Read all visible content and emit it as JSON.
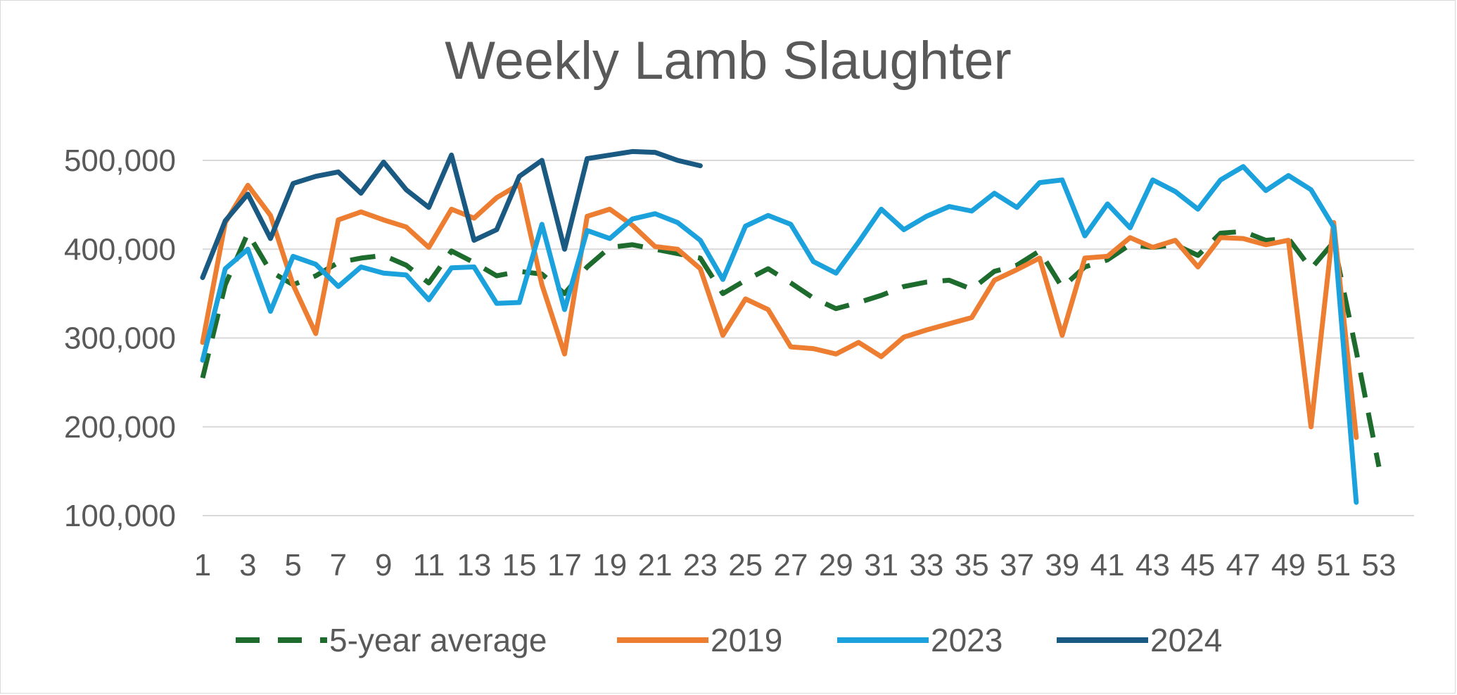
{
  "chart_data": {
    "type": "line",
    "title": "Weekly Lamb Slaughter",
    "xlabel": "",
    "ylabel": "",
    "x": [
      1,
      2,
      3,
      4,
      5,
      6,
      7,
      8,
      9,
      10,
      11,
      12,
      13,
      14,
      15,
      16,
      17,
      18,
      19,
      20,
      21,
      22,
      23,
      24,
      25,
      26,
      27,
      28,
      29,
      30,
      31,
      32,
      33,
      34,
      35,
      36,
      37,
      38,
      39,
      40,
      41,
      42,
      43,
      44,
      45,
      46,
      47,
      48,
      49,
      50,
      51,
      52,
      53
    ],
    "x_tick_labels": [
      "1",
      "3",
      "5",
      "7",
      "9",
      "11",
      "13",
      "15",
      "17",
      "19",
      "21",
      "23",
      "25",
      "27",
      "29",
      "31",
      "33",
      "35",
      "37",
      "39",
      "41",
      "43",
      "45",
      "47",
      "49",
      "51",
      "53"
    ],
    "y_tick_labels": [
      "100,000",
      "200,000",
      "300,000",
      "400,000",
      "500,000"
    ],
    "y_ticks": [
      100000,
      200000,
      300000,
      400000,
      500000
    ],
    "ylim": [
      100000,
      500000
    ],
    "xlim": [
      1,
      53
    ],
    "grid": true,
    "legend_position": "bottom",
    "series": [
      {
        "name": "5-year average",
        "color": "#1e6b2e",
        "dash": true,
        "values": [
          255000,
          360000,
          418000,
          375000,
          360000,
          370000,
          385000,
          390000,
          393000,
          382000,
          362000,
          398000,
          385000,
          370000,
          375000,
          372000,
          350000,
          380000,
          402000,
          405000,
          400000,
          395000,
          390000,
          350000,
          365000,
          378000,
          362000,
          345000,
          333000,
          340000,
          348000,
          358000,
          363000,
          365000,
          355000,
          375000,
          382000,
          398000,
          357000,
          380000,
          388000,
          405000,
          402000,
          405000,
          393000,
          418000,
          420000,
          410000,
          412000,
          378000,
          408000,
          285000,
          155000
        ]
      },
      {
        "name": "2019",
        "color": "#ed7d31",
        "dash": false,
        "values": [
          295000,
          430000,
          472000,
          438000,
          360000,
          305000,
          433000,
          442000,
          433000,
          425000,
          402000,
          445000,
          435000,
          458000,
          473000,
          360000,
          282000,
          437000,
          445000,
          427000,
          403000,
          400000,
          378000,
          303000,
          344000,
          332000,
          290000,
          288000,
          282000,
          295000,
          279000,
          301000,
          309000,
          316000,
          323000,
          365000,
          377000,
          390000,
          303000,
          390000,
          392000,
          413000,
          402000,
          410000,
          380000,
          413000,
          412000,
          405000,
          410000,
          200000,
          430000,
          188000,
          null
        ]
      },
      {
        "name": "2023",
        "color": "#1ba1dc",
        "dash": false,
        "values": [
          275000,
          378000,
          400000,
          330000,
          392000,
          383000,
          358000,
          380000,
          373000,
          371000,
          343000,
          379000,
          380000,
          339000,
          340000,
          428000,
          332000,
          421000,
          412000,
          434000,
          440000,
          430000,
          410000,
          366000,
          426000,
          438000,
          428000,
          386000,
          373000,
          408000,
          445000,
          422000,
          437000,
          448000,
          443000,
          463000,
          447000,
          475000,
          478000,
          415000,
          451000,
          424000,
          478000,
          465000,
          445000,
          478000,
          493000,
          466000,
          483000,
          467000,
          425000,
          115000,
          null
        ]
      },
      {
        "name": "2024",
        "color": "#1a5a82",
        "dash": false,
        "values": [
          368000,
          432000,
          462000,
          412000,
          474000,
          482000,
          487000,
          463000,
          498000,
          467000,
          447000,
          506000,
          410000,
          422000,
          482000,
          500000,
          400000,
          502000,
          506000,
          510000,
          509000,
          500000,
          494000,
          null,
          null,
          null,
          null,
          null,
          null,
          null,
          null,
          null,
          null,
          null,
          null,
          null,
          null,
          null,
          null,
          null,
          null,
          null,
          null,
          null,
          null,
          null,
          null,
          null,
          null,
          null,
          null,
          null,
          null
        ]
      }
    ]
  }
}
